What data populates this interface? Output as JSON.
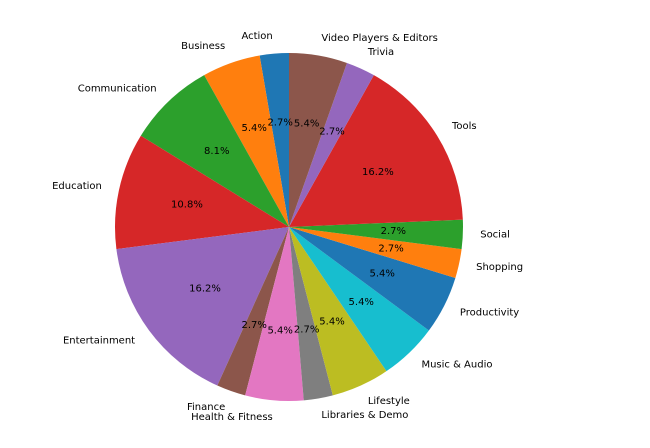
{
  "chart_data": {
    "type": "pie",
    "labels": [
      "Action",
      "Business",
      "Communication",
      "Education",
      "Entertainment",
      "Finance",
      "Health & Fitness",
      "Libraries & Demo",
      "Lifestyle",
      "Music & Audio",
      "Productivity",
      "Shopping",
      "Social",
      "Tools",
      "Trivia",
      "Video Players & Editors"
    ],
    "values": [
      1,
      2,
      3,
      4,
      6,
      1,
      2,
      1,
      2,
      2,
      2,
      1,
      1,
      6,
      1,
      2
    ],
    "pct_labels": [
      "2.7%",
      "5.4%",
      "8.1%",
      "10.8%",
      "16.2%",
      "2.7%",
      "5.4%",
      "2.7%",
      "5.4%",
      "5.4%",
      "5.4%",
      "2.7%",
      "2.7%",
      "16.2%",
      "2.7%",
      "5.4%"
    ],
    "colors": [
      "#1f77b4",
      "#ff7f0e",
      "#2ca02c",
      "#d62728",
      "#9467bd",
      "#8c564b",
      "#e377c2",
      "#7f7f7f",
      "#bcbd22",
      "#17becf",
      "#1f77b4",
      "#ff7f0e",
      "#2ca02c",
      "#d62728",
      "#9467bd",
      "#8c564b"
    ],
    "start_angle_deg": 90,
    "direction": "counterclockwise",
    "title": ""
  }
}
